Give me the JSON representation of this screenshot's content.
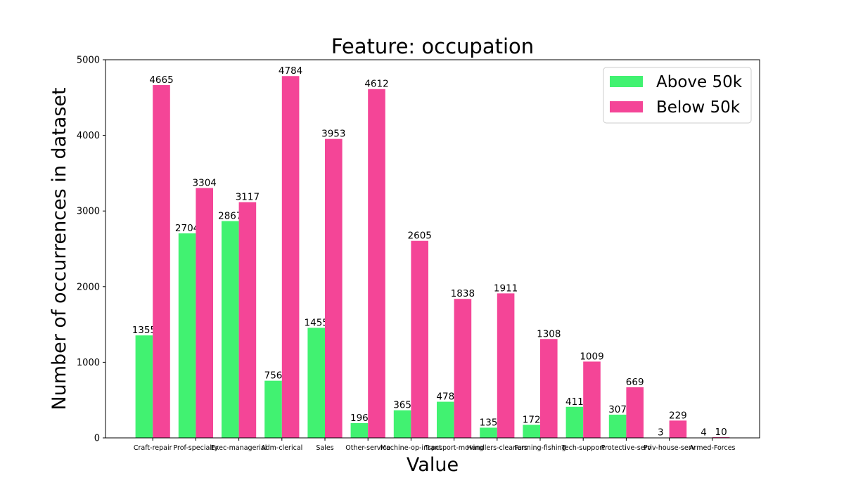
{
  "chart_data": {
    "type": "bar",
    "title": "Feature: occupation",
    "xlabel": "Value",
    "ylabel": "Number of occurrences in dataset",
    "categories": [
      "Craft-repair",
      "Prof-specialty",
      "Exec-managerial",
      "Adm-clerical",
      "Sales",
      "Other-service",
      "Machine-op-inspct",
      "Transport-moving",
      "Handlers-cleaners",
      "Farming-fishing",
      "Tech-support",
      "Protective-serv",
      "Priv-house-serv",
      "Armed-Forces"
    ],
    "series": [
      {
        "name": "Above 50k",
        "color": "#41f271",
        "values": [
          1355,
          2704,
          2867,
          756,
          1455,
          196,
          365,
          478,
          135,
          172,
          411,
          307,
          3,
          4
        ]
      },
      {
        "name": "Below 50k",
        "color": "#f44597",
        "values": [
          4665,
          3304,
          3117,
          4784,
          3953,
          4612,
          2605,
          1838,
          1911,
          1308,
          1009,
          669,
          229,
          10
        ]
      }
    ],
    "ylim": [
      0,
      5000
    ],
    "yticks": [
      0,
      1000,
      2000,
      3000,
      4000,
      5000
    ],
    "legend_position": "top-right",
    "grid": false
  }
}
